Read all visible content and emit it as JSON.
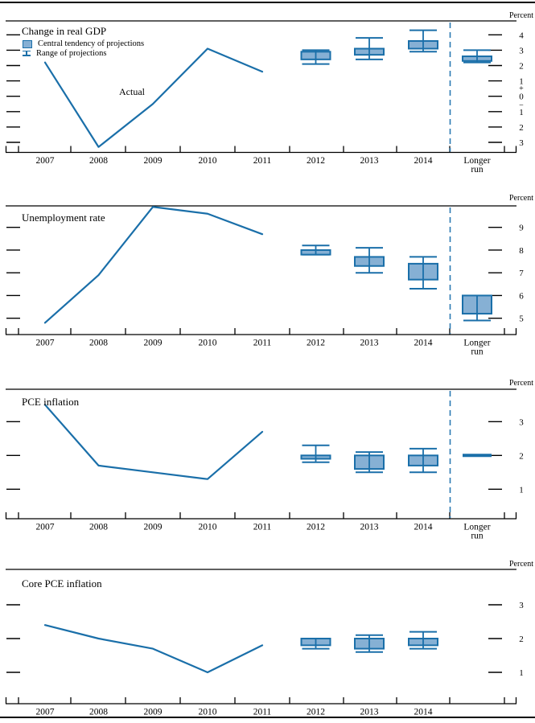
{
  "page": {
    "unit_label": "Percent",
    "description": "Four-panel FOMC economic projections figure: actual history 2007-2011 plus central tendencies and ranges of projections for 2012, 2013, 2014 and the longer run"
  },
  "colors": {
    "line_blue": "#1a6fa9",
    "box_fill_blue": "#86b0d4",
    "dashed_blue": "#2b7ab2",
    "axis_black": "#000000"
  },
  "legend": {
    "central_tendency": "Central tendency of projections",
    "range": "Range of projections"
  },
  "x_axis": {
    "years": [
      "2007",
      "2008",
      "2009",
      "2010",
      "2011",
      "2012",
      "2013",
      "2014"
    ],
    "longer_run_line1": "Longer",
    "longer_run_line2": "run"
  },
  "chart_data": [
    {
      "type": "line+boxplot",
      "title": "Change in real GDP",
      "unit": "Percent",
      "actual_annotation": "Actual",
      "yticks": [
        4,
        3,
        2,
        1,
        0,
        -1,
        -2,
        -3
      ],
      "ytick_labels": [
        "4",
        "3",
        "2",
        "1",
        "0",
        "1",
        "2",
        "3"
      ],
      "zero_sign_markers": true,
      "plus_marker": "+",
      "minus_marker": "−",
      "ylim": [
        -3.6,
        4.9
      ],
      "actual": {
        "years": [
          2007,
          2008,
          2009,
          2010,
          2011
        ],
        "values": [
          2.2,
          -3.3,
          -0.5,
          3.1,
          1.6
        ]
      },
      "projections": [
        {
          "period": "2012",
          "central_tendency": [
            2.4,
            2.9
          ],
          "range": [
            2.1,
            3.0
          ]
        },
        {
          "period": "2013",
          "central_tendency": [
            2.7,
            3.1
          ],
          "range": [
            2.4,
            3.8
          ]
        },
        {
          "period": "2014",
          "central_tendency": [
            3.1,
            3.6
          ],
          "range": [
            2.9,
            4.3
          ]
        },
        {
          "period": "Longer run",
          "central_tendency": [
            2.3,
            2.6
          ],
          "range": [
            2.2,
            3.0
          ]
        }
      ],
      "has_longer_run_column": true,
      "show_dashed_separator": true,
      "show_legend": true
    },
    {
      "type": "line+boxplot",
      "title": "Unemployment rate",
      "unit": "Percent",
      "yticks": [
        9,
        8,
        7,
        6,
        5
      ],
      "ytick_labels": [
        "9",
        "8",
        "7",
        "6",
        "5"
      ],
      "zero_sign_markers": false,
      "ylim": [
        4.3,
        10.0
      ],
      "actual": {
        "years": [
          2007,
          2008,
          2009,
          2010,
          2011
        ],
        "values": [
          4.8,
          6.9,
          9.9,
          9.6,
          8.7
        ]
      },
      "projections": [
        {
          "period": "2012",
          "central_tendency": [
            7.8,
            8.0
          ],
          "range": [
            7.8,
            8.2
          ]
        },
        {
          "period": "2013",
          "central_tendency": [
            7.3,
            7.7
          ],
          "range": [
            7.0,
            8.1
          ]
        },
        {
          "period": "2014",
          "central_tendency": [
            6.7,
            7.4
          ],
          "range": [
            6.3,
            7.7
          ]
        },
        {
          "period": "Longer run",
          "central_tendency": [
            5.2,
            6.0
          ],
          "range": [
            4.9,
            6.0
          ]
        }
      ],
      "has_longer_run_column": true,
      "show_dashed_separator": true,
      "show_legend": false
    },
    {
      "type": "line+boxplot",
      "title": "PCE inflation",
      "unit": "Percent",
      "yticks": [
        3,
        2,
        1
      ],
      "ytick_labels": [
        "3",
        "2",
        "1"
      ],
      "zero_sign_markers": false,
      "ylim": [
        0.1,
        4.0
      ],
      "actual": {
        "years": [
          2007,
          2008,
          2009,
          2010,
          2011
        ],
        "values": [
          3.5,
          1.7,
          1.5,
          1.3,
          2.7
        ]
      },
      "projections": [
        {
          "period": "2012",
          "central_tendency": [
            1.9,
            2.0
          ],
          "range": [
            1.8,
            2.3
          ]
        },
        {
          "period": "2013",
          "central_tendency": [
            1.6,
            2.0
          ],
          "range": [
            1.5,
            2.1
          ]
        },
        {
          "period": "2014",
          "central_tendency": [
            1.7,
            2.0
          ],
          "range": [
            1.5,
            2.2
          ]
        },
        {
          "period": "Longer run",
          "central_tendency": [
            2.0,
            2.0
          ],
          "range": [
            2.0,
            2.0
          ]
        }
      ],
      "has_longer_run_column": true,
      "show_dashed_separator": true,
      "show_legend": false
    },
    {
      "type": "line+boxplot",
      "title": "Core PCE inflation",
      "unit": "Percent",
      "yticks": [
        3,
        2,
        1
      ],
      "ytick_labels": [
        "3",
        "2",
        "1"
      ],
      "zero_sign_markers": false,
      "ylim": [
        0.1,
        4.0
      ],
      "actual": {
        "years": [
          2007,
          2008,
          2009,
          2010,
          2011
        ],
        "values": [
          2.4,
          2.0,
          1.7,
          1.0,
          1.8
        ]
      },
      "projections": [
        {
          "period": "2012",
          "central_tendency": [
            1.8,
            2.0
          ],
          "range": [
            1.7,
            2.0
          ]
        },
        {
          "period": "2013",
          "central_tendency": [
            1.7,
            2.0
          ],
          "range": [
            1.6,
            2.1
          ]
        },
        {
          "period": "2014",
          "central_tendency": [
            1.8,
            2.0
          ],
          "range": [
            1.7,
            2.2
          ]
        }
      ],
      "has_longer_run_column": false,
      "show_dashed_separator": false,
      "show_legend": false
    }
  ]
}
